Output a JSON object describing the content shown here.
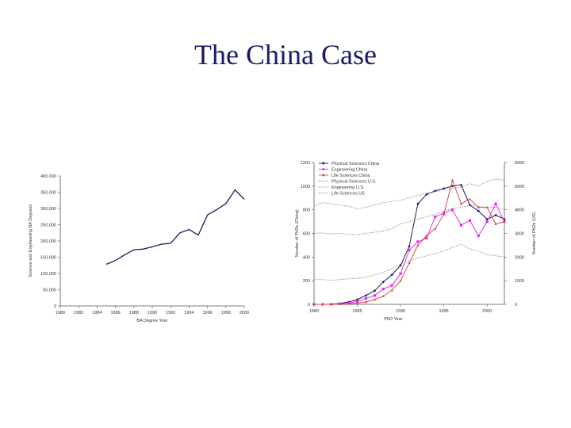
{
  "slide": {
    "title": "The China Case"
  },
  "colors": {
    "title": "#1a1a66",
    "axis": "#555555",
    "navy": "#1a1a5e",
    "magenta": "#e52de5",
    "red": "#d94a4a",
    "gray": "#888888"
  },
  "chart_data": [
    {
      "type": "line",
      "xlabel": "BA Degree Year",
      "ylabel": "Science and Engineering BA Degrees",
      "xlim": [
        1980,
        2000
      ],
      "ylim": [
        0,
        400000
      ],
      "x_ticks": [
        "1980",
        "1982",
        "1984",
        "1986",
        "1988",
        "1990",
        "1992",
        "1994",
        "1996",
        "1998",
        "2000"
      ],
      "y_ticks": [
        "0",
        "50,000",
        "100,000",
        "150,000",
        "200,000",
        "250,000",
        "300,000",
        "350,000",
        "400,000"
      ],
      "series": [
        {
          "x": [
            1985,
            1986,
            1987,
            1988,
            1989,
            1990,
            1991,
            1992,
            1993,
            1994,
            1995,
            1996,
            1997,
            1998,
            1999,
            2000
          ],
          "values": [
            128000,
            140000,
            157000,
            173000,
            175000,
            182000,
            190000,
            193000,
            225000,
            235000,
            218000,
            280000,
            296000,
            315000,
            357000,
            328000
          ]
        }
      ]
    },
    {
      "type": "line",
      "xlabel": "PhD Year",
      "ylabel": "Number of PhDs (China)",
      "y2label": "Number of PhDs (US)",
      "xlim": [
        1980,
        2002
      ],
      "ylim": [
        0,
        1200
      ],
      "y2lim": [
        0,
        6000
      ],
      "x_ticks": [
        "1980",
        "1985",
        "1990",
        "1995",
        "2000"
      ],
      "y_ticks": [
        "0",
        "200",
        "400",
        "600",
        "800",
        "1000",
        "1200"
      ],
      "y2_ticks": [
        "0",
        "1000",
        "2000",
        "3000",
        "4000",
        "5000",
        "6000"
      ],
      "legend_position": "top-left",
      "series": [
        {
          "name": "Physical Sciences China",
          "axis": "left",
          "style": "solid-diamond",
          "x": [
            1980,
            1981,
            1982,
            1983,
            1984,
            1985,
            1986,
            1987,
            1988,
            1989,
            1990,
            1991,
            1992,
            1993,
            1994,
            1995,
            1996,
            1997,
            1998,
            1999,
            2000,
            2001,
            2002
          ],
          "values": [
            0,
            0,
            2,
            8,
            20,
            40,
            75,
            115,
            190,
            250,
            330,
            490,
            850,
            930,
            960,
            980,
            1000,
            1010,
            840,
            790,
            720,
            755,
            720
          ]
        },
        {
          "name": "Engineering China",
          "axis": "left",
          "style": "solid-square",
          "x": [
            1980,
            1981,
            1982,
            1983,
            1984,
            1985,
            1986,
            1987,
            1988,
            1989,
            1990,
            1991,
            1992,
            1993,
            1994,
            1995,
            1996,
            1997,
            1998,
            1999,
            2000,
            2001,
            2002
          ],
          "values": [
            0,
            0,
            0,
            5,
            10,
            25,
            50,
            75,
            130,
            160,
            260,
            460,
            530,
            560,
            740,
            770,
            800,
            670,
            710,
            580,
            700,
            850,
            700
          ]
        },
        {
          "name": "Life Sciences China",
          "axis": "left",
          "style": "solid-triangle",
          "x": [
            1980,
            1981,
            1982,
            1983,
            1984,
            1985,
            1986,
            1987,
            1988,
            1989,
            1990,
            1991,
            1992,
            1993,
            1994,
            1995,
            1996,
            1997,
            1998,
            1999,
            2000,
            2001,
            2002
          ],
          "values": [
            0,
            0,
            0,
            3,
            5,
            10,
            20,
            40,
            70,
            120,
            200,
            350,
            500,
            580,
            640,
            760,
            1050,
            850,
            890,
            820,
            820,
            680,
            700
          ]
        },
        {
          "name": "Physical Sciences U.S.",
          "axis": "right",
          "style": "dotted",
          "x": [
            1980,
            1981,
            1982,
            1983,
            1984,
            1985,
            1986,
            1987,
            1988,
            1989,
            1990,
            1991,
            1992,
            1993,
            1994,
            1995,
            1996,
            1997,
            1998,
            1999,
            2000,
            2001,
            2002
          ],
          "values": [
            1050,
            1050,
            1020,
            1050,
            1080,
            1100,
            1150,
            1250,
            1350,
            1500,
            1700,
            1850,
            1950,
            2050,
            2150,
            2250,
            2400,
            2550,
            2350,
            2250,
            2100,
            2050,
            2000
          ]
        },
        {
          "name": "Engineering U.S.",
          "axis": "right",
          "style": "dotted",
          "x": [
            1980,
            1981,
            1982,
            1983,
            1984,
            1985,
            1986,
            1987,
            1988,
            1989,
            1990,
            1991,
            1992,
            1993,
            1994,
            1995,
            1996,
            1997,
            1998,
            1999,
            2000,
            2001,
            2002
          ],
          "values": [
            3000,
            3020,
            2980,
            3000,
            2960,
            2950,
            3000,
            3050,
            3100,
            3200,
            3400,
            3500,
            3600,
            3700,
            3800,
            3950,
            4050,
            4100,
            4200,
            4150,
            4100,
            4100,
            4000
          ]
        },
        {
          "name": "Life Sciences US",
          "axis": "right",
          "style": "dotted",
          "x": [
            1980,
            1981,
            1982,
            1983,
            1984,
            1985,
            1986,
            1987,
            1988,
            1989,
            1990,
            1991,
            1992,
            1993,
            1994,
            1995,
            1996,
            1997,
            1998,
            1999,
            2000,
            2001,
            2002
          ],
          "values": [
            4150,
            4300,
            4250,
            4200,
            4150,
            4050,
            4100,
            4200,
            4300,
            4350,
            4400,
            4500,
            4600,
            4700,
            4750,
            4850,
            4900,
            4950,
            5100,
            5000,
            5200,
            5300,
            5250
          ]
        }
      ]
    }
  ]
}
